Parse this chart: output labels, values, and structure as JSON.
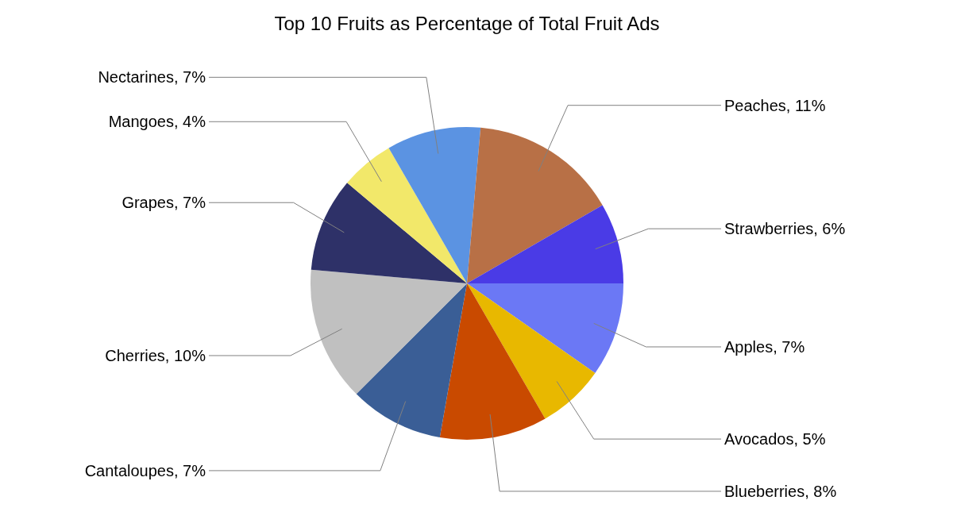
{
  "chart_data": {
    "type": "pie",
    "title": "Top 10 Fruits as Percentage of Total Fruit Ads",
    "categories": [
      "Apples",
      "Avocados",
      "Blueberries",
      "Cantaloupes",
      "Cherries",
      "Grapes",
      "Mangoes",
      "Nectarines",
      "Peaches",
      "Strawberries"
    ],
    "values": [
      7,
      5,
      8,
      7,
      10,
      7,
      4,
      7,
      11,
      6
    ],
    "value_labels": [
      "7%",
      "5%",
      "8%",
      "7%",
      "10%",
      "7%",
      "4%",
      "7%",
      "11%",
      "6%"
    ],
    "colors": [
      "#6b78f5",
      "#e8b800",
      "#c94a00",
      "#3a5e96",
      "#c0c0c0",
      "#2e3168",
      "#f2e86a",
      "#5b93e2",
      "#b87046",
      "#4a3be6"
    ]
  }
}
